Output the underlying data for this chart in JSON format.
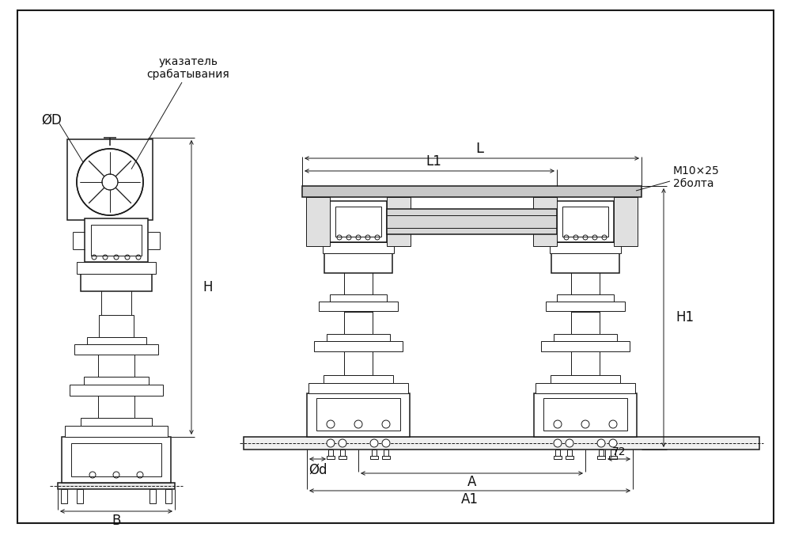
{
  "bg_color": "#ffffff",
  "line_color": "#1a1a1a",
  "text_color": "#111111",
  "labels": {
    "phi_D": "ØD",
    "indicator": "указатель\nсрабатывания",
    "H": "H",
    "B": "B",
    "L": "L",
    "L1": "L1",
    "H1": "H1",
    "M10": "M10×25\n2болта",
    "phi_d": "Ød",
    "A": "A",
    "A1": "A1",
    "dim72": "72"
  },
  "lw": 1.1,
  "lw_thin": 0.7,
  "lw_thick": 1.8,
  "fontsize_main": 12,
  "fontsize_small": 10
}
